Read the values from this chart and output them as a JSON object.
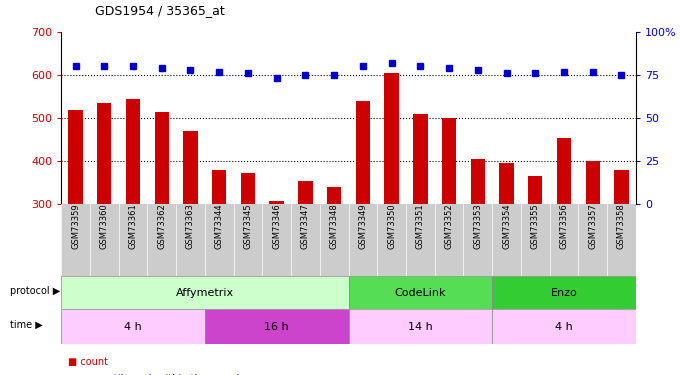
{
  "title": "GDS1954 / 35365_at",
  "samples": [
    "GSM73359",
    "GSM73360",
    "GSM73361",
    "GSM73362",
    "GSM73363",
    "GSM73344",
    "GSM73345",
    "GSM73346",
    "GSM73347",
    "GSM73348",
    "GSM73349",
    "GSM73350",
    "GSM73351",
    "GSM73352",
    "GSM73353",
    "GSM73354",
    "GSM73355",
    "GSM73356",
    "GSM73357",
    "GSM73358"
  ],
  "counts": [
    520,
    535,
    545,
    515,
    470,
    380,
    372,
    308,
    355,
    340,
    540,
    605,
    510,
    500,
    405,
    395,
    365,
    455,
    400,
    380
  ],
  "percentile": [
    80,
    80,
    80,
    79,
    78,
    77,
    76,
    73,
    75,
    75,
    80,
    82,
    80,
    79,
    78,
    76,
    76,
    77,
    77,
    75
  ],
  "ylim_left": [
    300,
    700
  ],
  "ylim_right": [
    0,
    100
  ],
  "yticks_left": [
    300,
    400,
    500,
    600,
    700
  ],
  "yticks_right": [
    0,
    25,
    50,
    75,
    100
  ],
  "bar_color": "#cc0000",
  "dot_color": "#0000cc",
  "bg_color": "#ffffff",
  "xlabel_bg": "#cccccc",
  "protocol_groups": [
    {
      "label": "Affymetrix",
      "start": 0,
      "end": 10,
      "color": "#ccffcc"
    },
    {
      "label": "CodeLink",
      "start": 10,
      "end": 15,
      "color": "#55dd55"
    },
    {
      "label": "Enzo",
      "start": 15,
      "end": 20,
      "color": "#33cc33"
    }
  ],
  "time_groups": [
    {
      "label": "4 h",
      "start": 0,
      "end": 5,
      "color": "#ffccff"
    },
    {
      "label": "16 h",
      "start": 5,
      "end": 10,
      "color": "#cc44cc"
    },
    {
      "label": "14 h",
      "start": 10,
      "end": 15,
      "color": "#ffccff"
    },
    {
      "label": "4 h",
      "start": 15,
      "end": 20,
      "color": "#ffccff"
    }
  ],
  "left_tick_color": "#cc0000",
  "right_tick_color": "#0000cc"
}
